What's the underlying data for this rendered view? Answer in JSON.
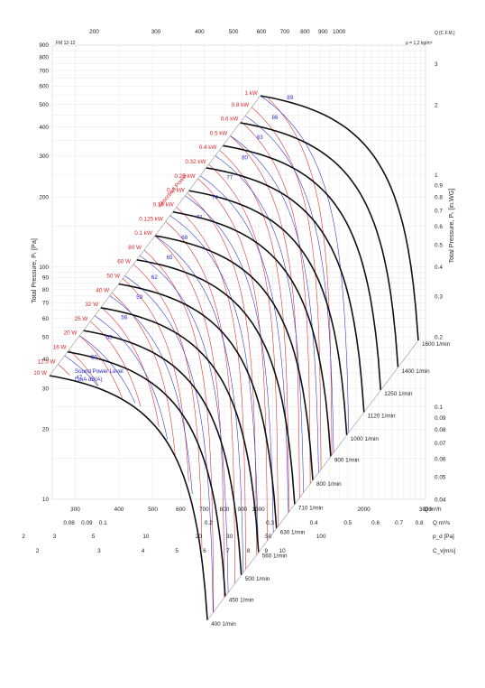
{
  "chart_data": {
    "type": "line",
    "code_label": "FM 12-12",
    "density_label": "ρ = 1,2 kg/m³",
    "y_left": {
      "label": "Total Pressure, Pₜ [Pa]",
      "scale": "log",
      "range": [
        10,
        900
      ],
      "ticks": [
        "900",
        "800",
        "700",
        "600",
        "500",
        "400",
        "300",
        "200",
        "100",
        "90",
        "80",
        "70",
        "60",
        "50",
        "40",
        "30",
        "20",
        "10"
      ]
    },
    "y_right": {
      "label": "Total Pressure, Pₜ [in.WG]",
      "ticks": [
        "3",
        "2",
        "1",
        "0.9",
        "0.8",
        "0.7",
        "0.6",
        "0.5",
        "0.4",
        "0.3",
        "0.2",
        "0.1",
        "0.09",
        "0.08",
        "0.07",
        "0.06",
        "0.05",
        "0.04"
      ]
    },
    "x_top": {
      "unit": "Q [C.F.M.]",
      "ticks": [
        "200",
        "300",
        "400",
        "500",
        "600",
        "700",
        "800",
        "900",
        "1000"
      ]
    },
    "x_bottom": {
      "unit": "Q m³/h",
      "ticks": [
        "300",
        "400",
        "500",
        "600",
        "700",
        "800",
        "900",
        "1000",
        "2000",
        "3000"
      ]
    },
    "x_row_ms": {
      "unit": "Q m³/s",
      "ticks": [
        "0.08",
        "0.09",
        "0.1",
        "0.2",
        "0.3",
        "0.4",
        "0.5",
        "0.6",
        "0.7",
        "0.8"
      ]
    },
    "x_row_pa": {
      "unit": "p_d [Pa]",
      "ticks": [
        "2",
        "3",
        "5",
        "10",
        "20",
        "30",
        "50",
        "100"
      ]
    },
    "x_row_cv": {
      "unit": "C_v[m/s]",
      "ticks": [
        "2",
        "3",
        "4",
        "5",
        "6",
        "7",
        "8",
        "9",
        "10"
      ]
    },
    "fan_speeds": [
      "400 1/min",
      "450 1/min",
      "500 1/min",
      "560 1/min",
      "630 1/min",
      "710 1/min",
      "800 1/min",
      "900 1/min",
      "1000 1/min",
      "1120 1/min",
      "1250 1/min",
      "1400 1/min",
      "1600 1/min"
    ],
    "power_labels": [
      "10 W",
      "12.5 W",
      "16 W",
      "20 W",
      "25 W",
      "32 W",
      "40 W",
      "50 W",
      "60 W",
      "80 W",
      "0.1 kW",
      "0.125 kW",
      "0.16 kW",
      "0.2 kW",
      "0.25 kW",
      "0.32 kW",
      "0.4 kW",
      "0.5 kW",
      "0.6 kW",
      "0.8 kW",
      "1 kW"
    ],
    "sound_labels": [
      "47",
      "50",
      "53",
      "56",
      "59",
      "62",
      "65",
      "68",
      "71",
      "74",
      "77",
      "80",
      "83",
      "86",
      "89"
    ],
    "power_axis_title": "Absorbed Power",
    "sound_title_line1": "Sound Power Level",
    "sound_title_line2": "LwiA dB(A)",
    "grid": true,
    "colors": {
      "speed_curves": "#111111",
      "power_lines": "#d8262a",
      "sound_lines": "#2a2ad0",
      "grid": "#e2e2e2"
    }
  }
}
